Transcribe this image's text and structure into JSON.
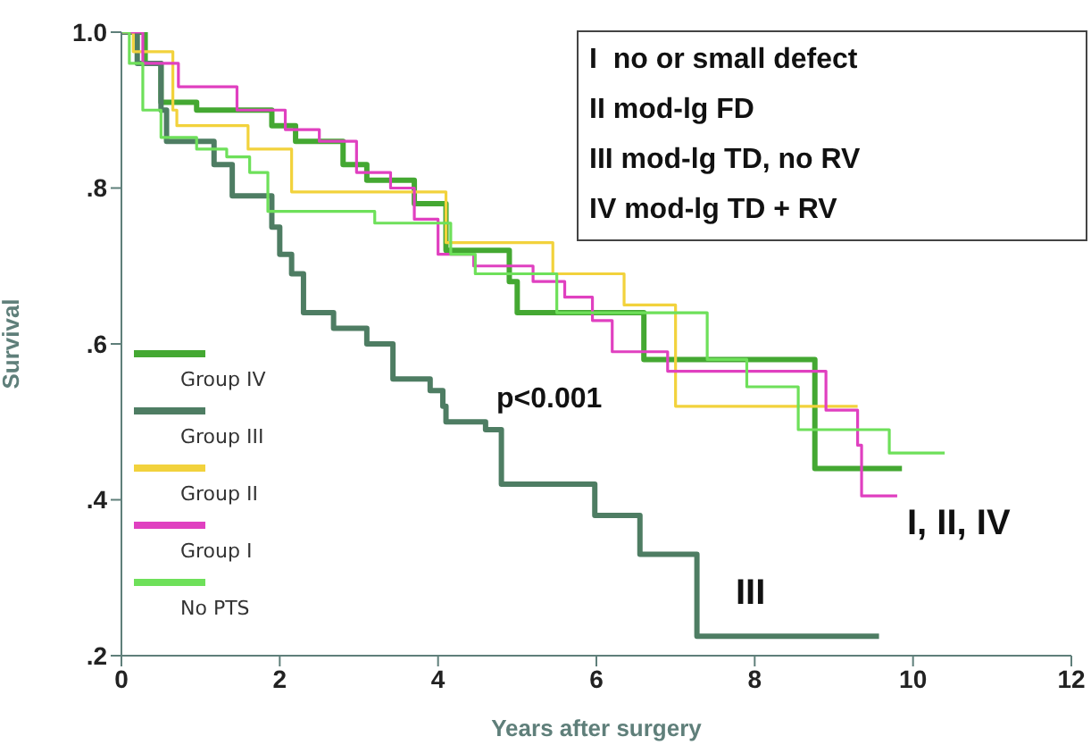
{
  "chart_data": {
    "type": "step",
    "xlabel": "Years after surgery",
    "ylabel": "Survival",
    "xlim": [
      0,
      12
    ],
    "xticks": [
      0,
      2,
      4,
      6,
      8,
      10,
      12
    ],
    "ylim": [
      0.2,
      1.0
    ],
    "yticks": [
      {
        "value": 0.2,
        "label": ".2"
      },
      {
        "value": 0.4,
        "label": ".4"
      },
      {
        "value": 0.6,
        "label": ".6"
      },
      {
        "value": 0.8,
        "label": ".8"
      },
      {
        "value": 1.0,
        "label": "1.0"
      }
    ],
    "grid": false,
    "legend": "bottom left",
    "series": [
      {
        "name": "Group IV",
        "color": "#44a832",
        "x": [
          0,
          0.3,
          0.5,
          0.95,
          1.9,
          2.2,
          2.8,
          3.1,
          3.7,
          4.1,
          4.9,
          5.0,
          6.6,
          8.76,
          9.86
        ],
        "values": [
          1.0,
          0.96,
          0.91,
          0.9,
          0.88,
          0.86,
          0.83,
          0.81,
          0.78,
          0.72,
          0.68,
          0.64,
          0.58,
          0.44,
          0.44
        ]
      },
      {
        "name": "Group III",
        "color": "#4e7d63",
        "x": [
          0,
          0.2,
          0.5,
          0.57,
          1.17,
          1.4,
          1.9,
          2.0,
          2.15,
          2.3,
          2.68,
          3.1,
          3.43,
          3.9,
          4.06,
          4.1,
          4.6,
          4.8,
          5.98,
          6.55,
          7.27,
          9.57
        ],
        "values": [
          1.0,
          0.96,
          0.9,
          0.86,
          0.83,
          0.79,
          0.75,
          0.715,
          0.69,
          0.64,
          0.62,
          0.6,
          0.555,
          0.54,
          0.52,
          0.5,
          0.49,
          0.42,
          0.38,
          0.33,
          0.225,
          0.225
        ]
      },
      {
        "name": "Group II",
        "color": "#f2d23c",
        "x": [
          0,
          0.15,
          0.65,
          0.7,
          1.6,
          2.15,
          4.1,
          5.45,
          6.35,
          7.0,
          9.3
        ],
        "values": [
          1.0,
          0.975,
          0.9,
          0.88,
          0.85,
          0.795,
          0.73,
          0.69,
          0.65,
          0.52,
          0.52
        ]
      },
      {
        "name": "Group I",
        "color": "#e040c0",
        "x": [
          0,
          0.27,
          0.72,
          1.46,
          2.07,
          2.5,
          2.97,
          3.4,
          3.7,
          4.0,
          4.45,
          5.2,
          5.6,
          5.95,
          6.2,
          6.9,
          8.9,
          9.3,
          9.35,
          9.8
        ],
        "values": [
          1.0,
          0.96,
          0.93,
          0.9,
          0.875,
          0.86,
          0.82,
          0.8,
          0.76,
          0.715,
          0.7,
          0.68,
          0.66,
          0.63,
          0.59,
          0.565,
          0.515,
          0.47,
          0.405,
          0.405
        ]
      },
      {
        "name": "No PTS",
        "color": "#6ee05a",
        "x": [
          0,
          0.1,
          0.27,
          0.5,
          0.95,
          1.33,
          1.62,
          1.85,
          3.2,
          4.16,
          4.47,
          5.5,
          7.4,
          7.9,
          8.55,
          9.7,
          10.4
        ],
        "values": [
          1.0,
          0.96,
          0.9,
          0.865,
          0.85,
          0.84,
          0.82,
          0.77,
          0.755,
          0.715,
          0.69,
          0.64,
          0.58,
          0.545,
          0.49,
          0.46,
          0.46
        ]
      }
    ],
    "annotations": [
      "I  no or small defect",
      "II mod-lg FD",
      "III mod-lg TD, no RV",
      "IV mod-lg TD + RV",
      "p<0.001",
      "I, II, IV",
      "III"
    ]
  }
}
